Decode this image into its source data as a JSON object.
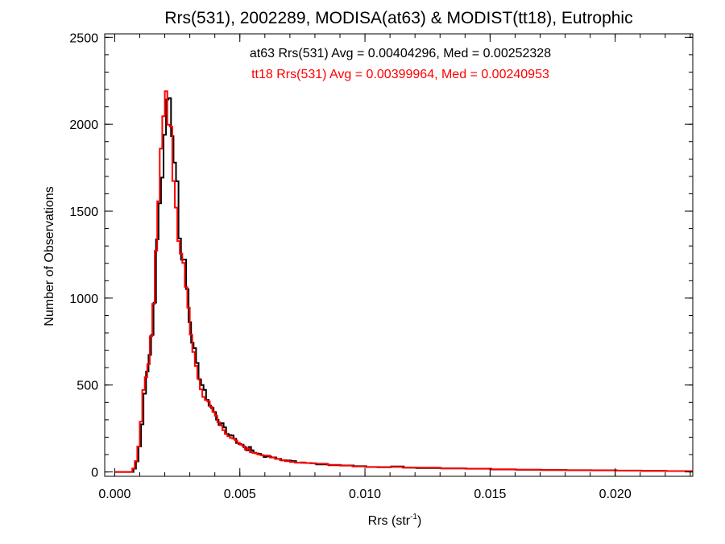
{
  "chart_data": {
    "type": "line",
    "title": "Rrs(531), 2002289, MODISA(at63) & MODIST(tt18), Eutrophic",
    "xlabel_main": "Rrs (str",
    "xlabel_sup": "-1",
    "xlabel_close": ")",
    "ylabel": "Number of Observations",
    "xlim": [
      -0.0004,
      0.0231
    ],
    "ylim": [
      -25,
      2520
    ],
    "x_ticks": [
      0.0,
      0.005,
      0.01,
      0.015,
      0.02
    ],
    "x_tick_labels": [
      "0.000",
      "0.005",
      "0.010",
      "0.015",
      "0.020"
    ],
    "x_minor_step": 0.001,
    "y_ticks": [
      0,
      500,
      1000,
      1500,
      2000,
      2500
    ],
    "y_tick_labels": [
      "0",
      "500",
      "1000",
      "1500",
      "2000",
      "2500"
    ],
    "y_minor_step": 100,
    "bin_width": 0.0001,
    "bins": [
      {
        "lo": 0.0007,
        "v": 20
      },
      {
        "lo": 0.0008,
        "v": 60
      },
      {
        "lo": 0.0009,
        "v": 140
      },
      {
        "lo": 0.001,
        "v": 280
      },
      {
        "lo": 0.0011,
        "v": 470
      },
      {
        "lo": 0.0012,
        "v": 560
      },
      {
        "lo": 0.0013,
        "v": 650
      },
      {
        "lo": 0.0014,
        "v": 820
      },
      {
        "lo": 0.0015,
        "v": 1000
      },
      {
        "lo": 0.0016,
        "v": 1280
      },
      {
        "lo": 0.0017,
        "v": 1520
      },
      {
        "lo": 0.0018,
        "v": 1780
      },
      {
        "lo": 0.0019,
        "v": 1950
      },
      {
        "lo": 0.002,
        "v": 2040
      },
      {
        "lo": 0.0021,
        "v": 1980
      },
      {
        "lo": 0.0022,
        "v": 2030
      },
      {
        "lo": 0.0023,
        "v": 1750
      },
      {
        "lo": 0.0024,
        "v": 1600
      },
      {
        "lo": 0.0025,
        "v": 1380
      },
      {
        "lo": 0.0026,
        "v": 1270
      },
      {
        "lo": 0.0027,
        "v": 1180
      },
      {
        "lo": 0.0028,
        "v": 1020
      },
      {
        "lo": 0.0029,
        "v": 900
      },
      {
        "lo": 0.003,
        "v": 760
      },
      {
        "lo": 0.0031,
        "v": 680
      },
      {
        "lo": 0.0032,
        "v": 620
      },
      {
        "lo": 0.0033,
        "v": 560
      },
      {
        "lo": 0.0034,
        "v": 500
      },
      {
        "lo": 0.0035,
        "v": 450
      },
      {
        "lo": 0.0036,
        "v": 420
      },
      {
        "lo": 0.0037,
        "v": 400
      },
      {
        "lo": 0.0038,
        "v": 360
      },
      {
        "lo": 0.0039,
        "v": 330
      },
      {
        "lo": 0.004,
        "v": 310
      },
      {
        "lo": 0.0041,
        "v": 280
      },
      {
        "lo": 0.0042,
        "v": 270
      },
      {
        "lo": 0.0043,
        "v": 250
      },
      {
        "lo": 0.0044,
        "v": 230
      },
      {
        "lo": 0.0045,
        "v": 215
      },
      {
        "lo": 0.0046,
        "v": 200
      },
      {
        "lo": 0.0047,
        "v": 190
      },
      {
        "lo": 0.0048,
        "v": 175
      },
      {
        "lo": 0.0049,
        "v": 160
      },
      {
        "lo": 0.005,
        "v": 150
      },
      {
        "lo": 0.0051,
        "v": 145
      },
      {
        "lo": 0.0052,
        "v": 130
      },
      {
        "lo": 0.0053,
        "v": 140
      },
      {
        "lo": 0.0054,
        "v": 120
      },
      {
        "lo": 0.0055,
        "v": 115
      },
      {
        "lo": 0.0056,
        "v": 110
      },
      {
        "lo": 0.0057,
        "v": 100
      },
      {
        "lo": 0.0058,
        "v": 95
      },
      {
        "lo": 0.0059,
        "v": 90
      },
      {
        "lo": 0.006,
        "v": 90
      },
      {
        "lo": 0.0062,
        "v": 80
      },
      {
        "lo": 0.0064,
        "v": 75
      },
      {
        "lo": 0.0066,
        "v": 70
      },
      {
        "lo": 0.0068,
        "v": 65
      },
      {
        "lo": 0.007,
        "v": 60
      },
      {
        "lo": 0.0072,
        "v": 55
      },
      {
        "lo": 0.0074,
        "v": 55
      },
      {
        "lo": 0.0076,
        "v": 50
      },
      {
        "lo": 0.0078,
        "v": 48
      },
      {
        "lo": 0.008,
        "v": 45
      },
      {
        "lo": 0.0085,
        "v": 40
      },
      {
        "lo": 0.009,
        "v": 36
      },
      {
        "lo": 0.0095,
        "v": 33
      },
      {
        "lo": 0.01,
        "v": 30
      },
      {
        "lo": 0.0105,
        "v": 28
      },
      {
        "lo": 0.011,
        "v": 30
      },
      {
        "lo": 0.0115,
        "v": 25
      },
      {
        "lo": 0.012,
        "v": 24
      },
      {
        "lo": 0.013,
        "v": 20
      },
      {
        "lo": 0.014,
        "v": 18
      },
      {
        "lo": 0.015,
        "v": 15
      },
      {
        "lo": 0.016,
        "v": 13
      },
      {
        "lo": 0.017,
        "v": 11
      },
      {
        "lo": 0.018,
        "v": 10
      },
      {
        "lo": 0.019,
        "v": 10
      },
      {
        "lo": 0.02,
        "v": 8
      },
      {
        "lo": 0.021,
        "v": 6
      },
      {
        "lo": 0.022,
        "v": 5
      }
    ],
    "series": [
      {
        "name": "at63",
        "color": "#000000",
        "annotation": "at63 Rrs(531) Avg = 0.00404296, Med = 0.00252328",
        "shift": 5e-05,
        "scale": 1.0,
        "peak": {
          "x": 0.00215,
          "y": 2150
        }
      },
      {
        "name": "tt18",
        "color": "#ff0000",
        "annotation": "tt18 Rrs(531) Avg = 0.00399964, Med = 0.00240953",
        "shift": 0.0,
        "scale": 1.0,
        "peak": {
          "x": 0.00205,
          "y": 2190
        }
      }
    ]
  }
}
